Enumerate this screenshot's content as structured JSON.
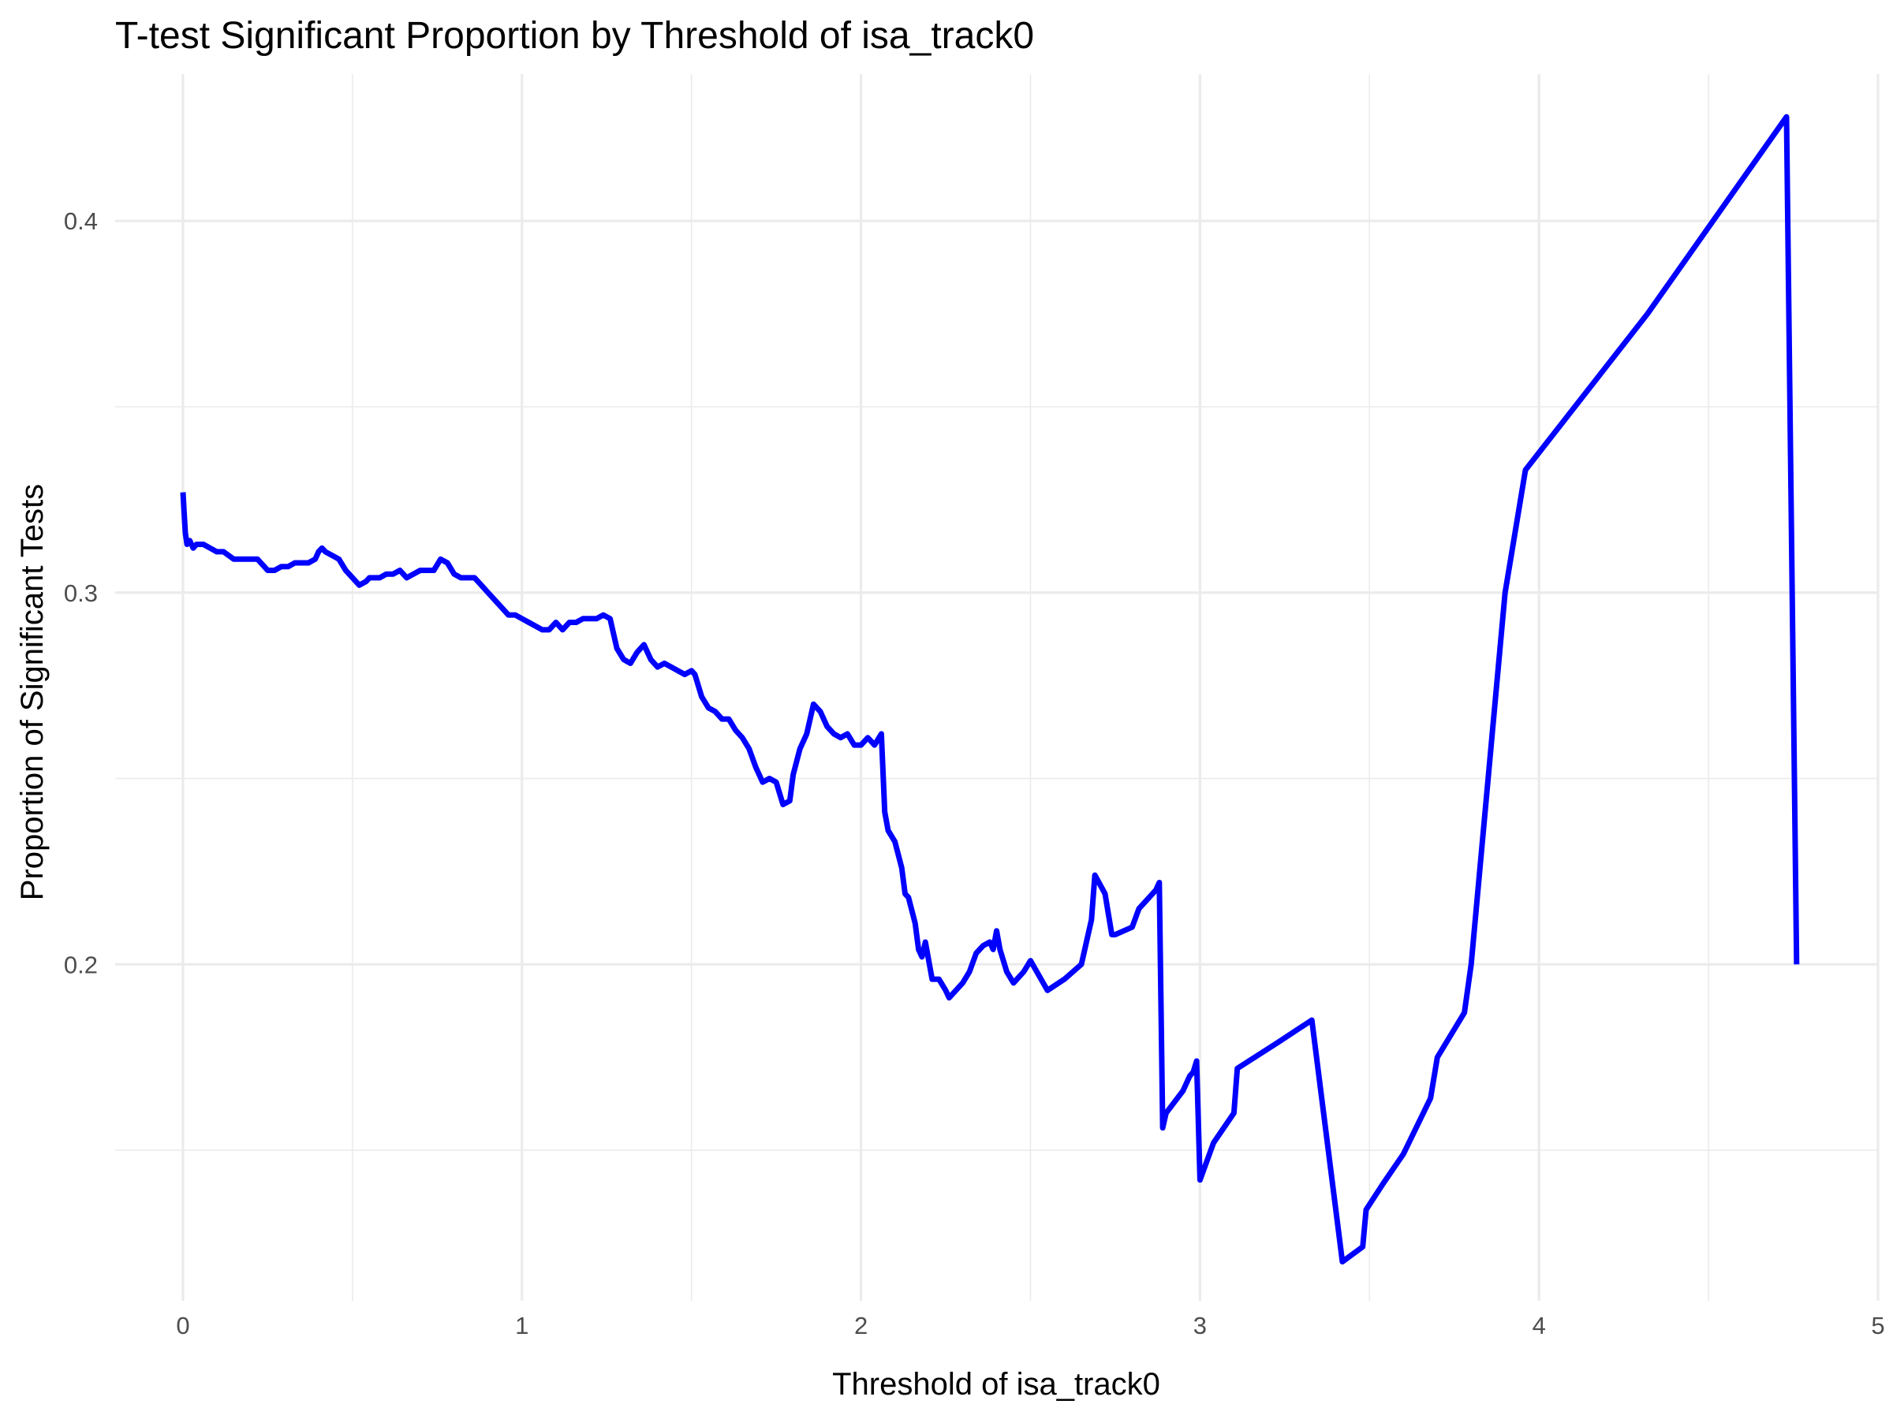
{
  "chart_data": {
    "type": "line",
    "title": "T-test Significant Proportion by Threshold of isa_track0",
    "xlabel": "Threshold of isa_track0",
    "ylabel": "Proportion of Significant Tests",
    "xlim": [
      -0.2,
      5.0
    ],
    "ylim": [
      0.1095,
      0.4395
    ],
    "x_ticks": [
      0,
      1,
      2,
      3,
      4,
      5
    ],
    "x_tick_labels": [
      "0",
      "1",
      "2",
      "3",
      "4",
      "5"
    ],
    "y_ticks": [
      0.2,
      0.3,
      0.4
    ],
    "y_tick_labels": [
      "0.2",
      "0.3",
      "0.4"
    ],
    "x_minor_ticks": [
      0.5,
      1.5,
      2.5,
      3.5,
      4.5
    ],
    "y_minor_ticks": [
      0.15,
      0.25,
      0.35
    ],
    "grid": true,
    "legend": "none",
    "series": [
      {
        "color": "#0000ff",
        "x": [
          0.0,
          0.003,
          0.007,
          0.012,
          0.02,
          0.03,
          0.04,
          0.05,
          0.06,
          0.08,
          0.1,
          0.12,
          0.15,
          0.18,
          0.2,
          0.22,
          0.25,
          0.27,
          0.29,
          0.31,
          0.33,
          0.35,
          0.37,
          0.39,
          0.4,
          0.41,
          0.42,
          0.44,
          0.46,
          0.48,
          0.5,
          0.52,
          0.54,
          0.55,
          0.56,
          0.58,
          0.6,
          0.62,
          0.64,
          0.66,
          0.68,
          0.7,
          0.72,
          0.74,
          0.76,
          0.78,
          0.8,
          0.82,
          0.84,
          0.86,
          0.88,
          0.9,
          0.92,
          0.94,
          0.96,
          0.98,
          1.0,
          1.02,
          1.04,
          1.06,
          1.08,
          1.1,
          1.12,
          1.14,
          1.16,
          1.18,
          1.2,
          1.22,
          1.24,
          1.26,
          1.28,
          1.3,
          1.32,
          1.34,
          1.36,
          1.38,
          1.4,
          1.42,
          1.44,
          1.46,
          1.48,
          1.5,
          1.51,
          1.53,
          1.55,
          1.57,
          1.59,
          1.61,
          1.63,
          1.65,
          1.67,
          1.69,
          1.71,
          1.73,
          1.75,
          1.77,
          1.79,
          1.8,
          1.82,
          1.84,
          1.86,
          1.88,
          1.9,
          1.92,
          1.94,
          1.96,
          1.98,
          2.0,
          2.02,
          2.04,
          2.06,
          2.07,
          2.08,
          2.1,
          2.12,
          2.13,
          2.14,
          2.16,
          2.17,
          2.18,
          2.19,
          2.21,
          2.23,
          2.25,
          2.26,
          2.28,
          2.3,
          2.32,
          2.34,
          2.36,
          2.38,
          2.39,
          2.4,
          2.41,
          2.43,
          2.45,
          2.48,
          2.5,
          2.55,
          2.6,
          2.65,
          2.68,
          2.69,
          2.72,
          2.74,
          2.75,
          2.8,
          2.82,
          2.87,
          2.88,
          2.89,
          2.9,
          2.95,
          2.97,
          2.98,
          2.99,
          3.0,
          3.04,
          3.1,
          3.11,
          3.23,
          3.33,
          3.42,
          3.48,
          3.49,
          3.54,
          3.6,
          3.68,
          3.7,
          3.78,
          3.8,
          3.9,
          3.96,
          4.32,
          4.73,
          4.76
        ],
        "y": [
          0.327,
          0.322,
          0.316,
          0.313,
          0.314,
          0.312,
          0.313,
          0.313,
          0.313,
          0.312,
          0.311,
          0.311,
          0.309,
          0.309,
          0.309,
          0.309,
          0.306,
          0.306,
          0.307,
          0.307,
          0.308,
          0.308,
          0.308,
          0.309,
          0.311,
          0.312,
          0.311,
          0.31,
          0.309,
          0.306,
          0.304,
          0.302,
          0.303,
          0.304,
          0.304,
          0.304,
          0.305,
          0.305,
          0.306,
          0.304,
          0.305,
          0.306,
          0.306,
          0.306,
          0.309,
          0.308,
          0.305,
          0.304,
          0.304,
          0.304,
          0.302,
          0.3,
          0.298,
          0.296,
          0.294,
          0.294,
          0.293,
          0.292,
          0.291,
          0.29,
          0.29,
          0.292,
          0.29,
          0.292,
          0.292,
          0.293,
          0.293,
          0.293,
          0.294,
          0.293,
          0.285,
          0.282,
          0.281,
          0.284,
          0.286,
          0.282,
          0.28,
          0.281,
          0.28,
          0.279,
          0.278,
          0.279,
          0.278,
          0.272,
          0.269,
          0.268,
          0.266,
          0.266,
          0.263,
          0.261,
          0.258,
          0.253,
          0.249,
          0.25,
          0.249,
          0.243,
          0.244,
          0.251,
          0.258,
          0.262,
          0.27,
          0.268,
          0.264,
          0.262,
          0.261,
          0.262,
          0.259,
          0.259,
          0.261,
          0.259,
          0.262,
          0.241,
          0.236,
          0.233,
          0.226,
          0.219,
          0.218,
          0.211,
          0.204,
          0.202,
          0.206,
          0.196,
          0.196,
          0.193,
          0.191,
          0.193,
          0.195,
          0.198,
          0.203,
          0.205,
          0.206,
          0.204,
          0.209,
          0.204,
          0.198,
          0.195,
          0.198,
          0.201,
          0.193,
          0.196,
          0.2,
          0.212,
          0.224,
          0.219,
          0.208,
          0.208,
          0.21,
          0.215,
          0.22,
          0.222,
          0.156,
          0.16,
          0.166,
          0.17,
          0.171,
          0.174,
          0.142,
          0.152,
          0.16,
          0.172,
          0.179,
          0.185,
          0.12,
          0.124,
          0.134,
          0.141,
          0.149,
          0.164,
          0.175,
          0.187,
          0.2,
          0.3,
          0.333,
          0.375,
          0.428,
          0.2
        ]
      }
    ]
  }
}
